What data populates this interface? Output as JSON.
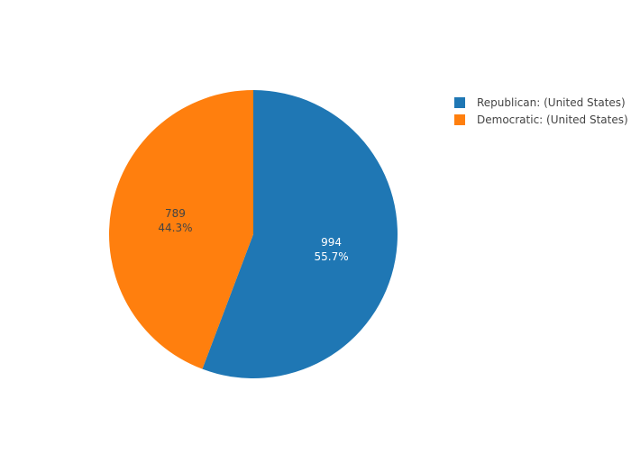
{
  "chart_data": {
    "type": "pie",
    "title": "",
    "slices": [
      {
        "label": "Republican: (United States)",
        "value": 994,
        "percent_label": "55.7%",
        "color": "#1f77b4",
        "text_color": "#ffffff"
      },
      {
        "label": "Democratic: (United States)",
        "value": 789,
        "percent_label": "44.3%",
        "color": "#ff7f0e",
        "text_color": "#444444"
      }
    ],
    "legend_position": "top-right",
    "direction": "clockwise",
    "start": "top"
  }
}
